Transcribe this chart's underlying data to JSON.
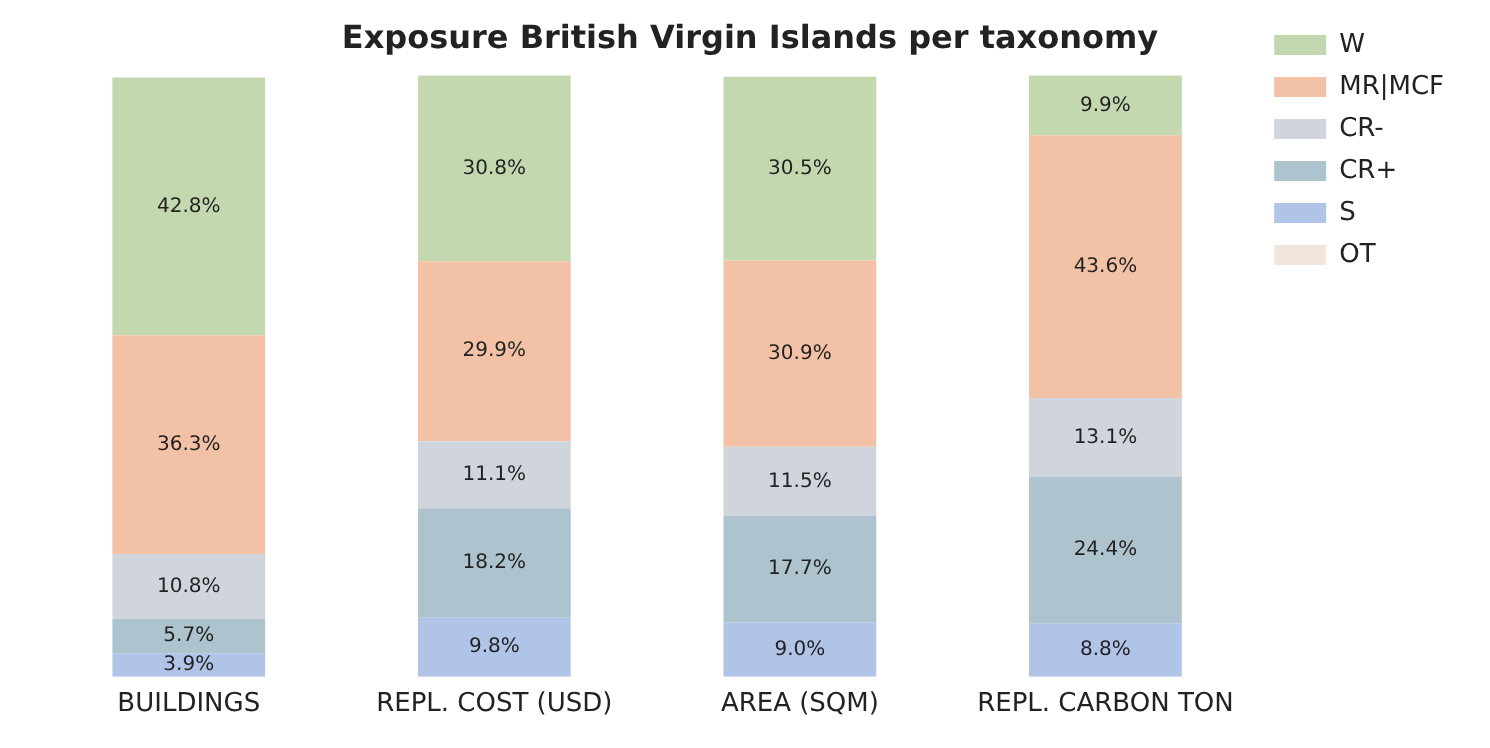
{
  "chart_data": {
    "type": "bar",
    "title": "Exposure British Virgin Islands per taxonomy",
    "categories": [
      "BUILDINGS",
      "REPL. COST (USD)",
      "AREA (SQM)",
      "REPL. CARBON TON"
    ],
    "stacked": true,
    "legend": "top right",
    "grid": false,
    "tick_labels": "x",
    "series": [
      {
        "name": "OT",
        "color": "#f2e6dc",
        "values": [
          null,
          null,
          null,
          null
        ]
      },
      {
        "name": "S",
        "color": "#b0c4e8",
        "values": [
          3.9,
          9.8,
          9.0,
          8.8
        ],
        "value_labels": [
          "3.9%",
          "9.8%",
          "9.0%",
          "8.8%"
        ]
      },
      {
        "name": "CR+",
        "color": "#adc4ce",
        "values": [
          5.7,
          18.2,
          17.7,
          24.4
        ],
        "value_labels": [
          "5.7%",
          "18.2%",
          "17.7%",
          "24.4%"
        ]
      },
      {
        "name": "CR-",
        "color": "#d0d4dc",
        "values": [
          10.8,
          11.1,
          11.5,
          13.1
        ],
        "value_labels": [
          "10.8%",
          "11.1%",
          "11.5%",
          "13.1%"
        ]
      },
      {
        "name": "MR|MCF",
        "color": "#f3c2a6",
        "values": [
          36.3,
          29.9,
          30.9,
          43.6
        ],
        "value_labels": [
          "36.3%",
          "29.9%",
          "30.9%",
          "43.6%"
        ]
      },
      {
        "name": "W",
        "color": "#c4d8b0",
        "values": [
          42.8,
          30.8,
          30.5,
          9.9
        ],
        "value_labels": [
          "42.8%",
          "30.8%",
          "30.5%",
          "9.9%"
        ]
      }
    ]
  }
}
